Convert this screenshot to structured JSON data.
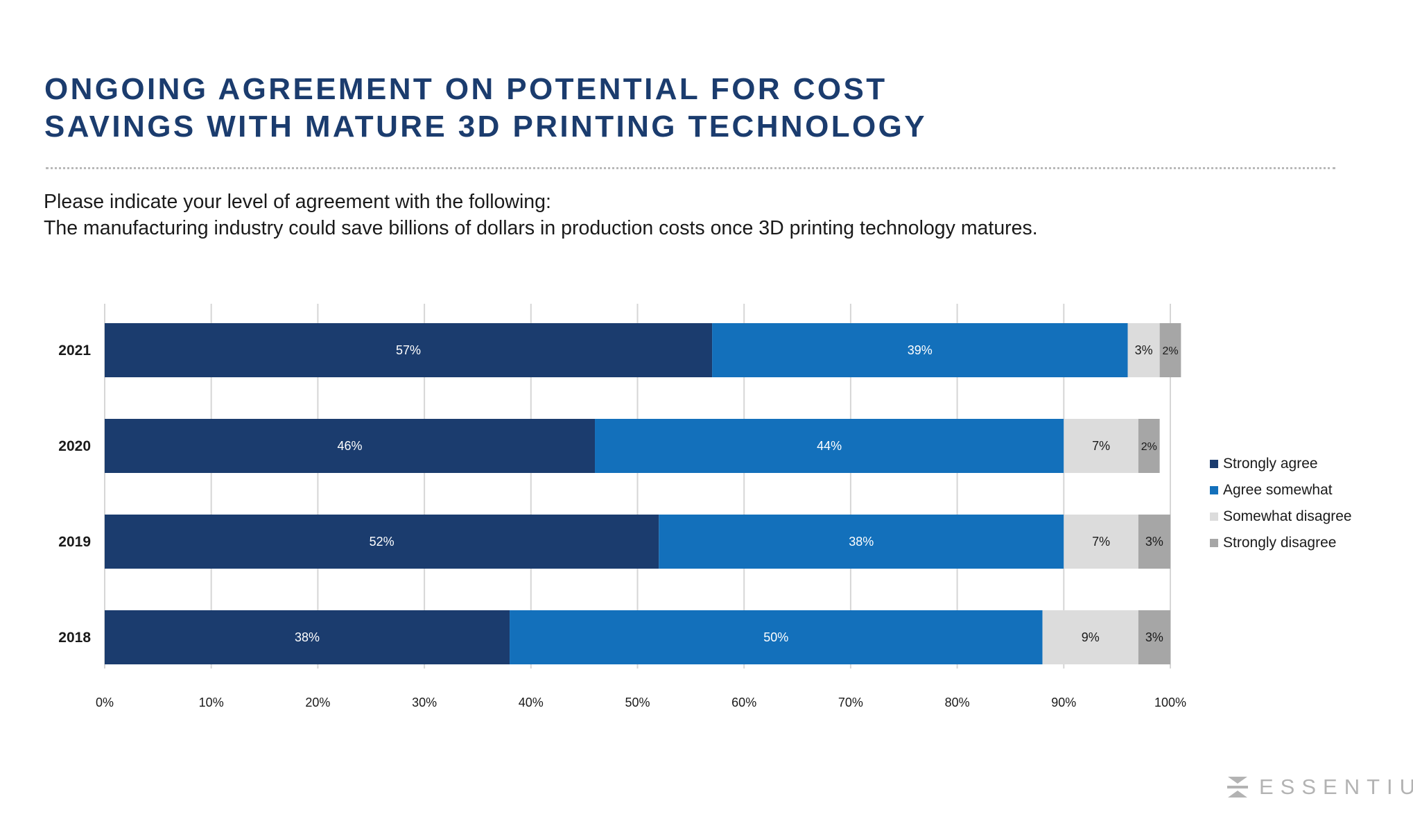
{
  "header": {
    "title_line1": "ONGOING AGREEMENT ON POTENTIAL FOR COST",
    "title_line2": "SAVINGS WITH MATURE 3D PRINTING TECHNOLOGY",
    "subtitle_line1": "Please indicate your level of agreement with the following:",
    "subtitle_line2": "The manufacturing industry could save billions of dollars in production costs once 3D printing technology matures."
  },
  "brand": {
    "name": "ESSENTIUM",
    "icon": "essentium-logo-icon"
  },
  "colors": {
    "strongly_agree": "#1b3c6e",
    "agree_somewhat": "#1370bb",
    "somewhat_disagree": "#dcdcdc",
    "strongly_disagree": "#a6a6a6",
    "title": "#1b3c6e"
  },
  "chart_data": {
    "type": "bar",
    "orientation": "horizontal",
    "stacked": true,
    "categories": [
      "2021",
      "2020",
      "2019",
      "2018"
    ],
    "series": [
      {
        "name": "Strongly agree",
        "values": [
          57,
          46,
          52,
          38
        ],
        "labels": [
          "57%",
          "46%",
          "52%",
          "38%"
        ],
        "color": "#1b3c6e"
      },
      {
        "name": "Agree somewhat",
        "values": [
          39,
          44,
          38,
          50
        ],
        "labels": [
          "39%",
          "44%",
          "38%",
          "50%"
        ],
        "color": "#1370bb"
      },
      {
        "name": "Somewhat disagree",
        "values": [
          3,
          7,
          7,
          9
        ],
        "labels": [
          "3%",
          "7%",
          "7%",
          "9%"
        ],
        "color": "#dcdcdc"
      },
      {
        "name": "Strongly disagree",
        "values": [
          2,
          2,
          3,
          3
        ],
        "labels": [
          "2%",
          "2%",
          "3%",
          "3%"
        ],
        "color": "#a6a6a6"
      }
    ],
    "xlim": [
      0,
      100
    ],
    "x_ticks": [
      0,
      10,
      20,
      30,
      40,
      50,
      60,
      70,
      80,
      90,
      100
    ],
    "x_tick_labels": [
      "0%",
      "10%",
      "20%",
      "30%",
      "40%",
      "50%",
      "60%",
      "70%",
      "80%",
      "90%",
      "100%"
    ],
    "grid": true,
    "legend": "right"
  }
}
